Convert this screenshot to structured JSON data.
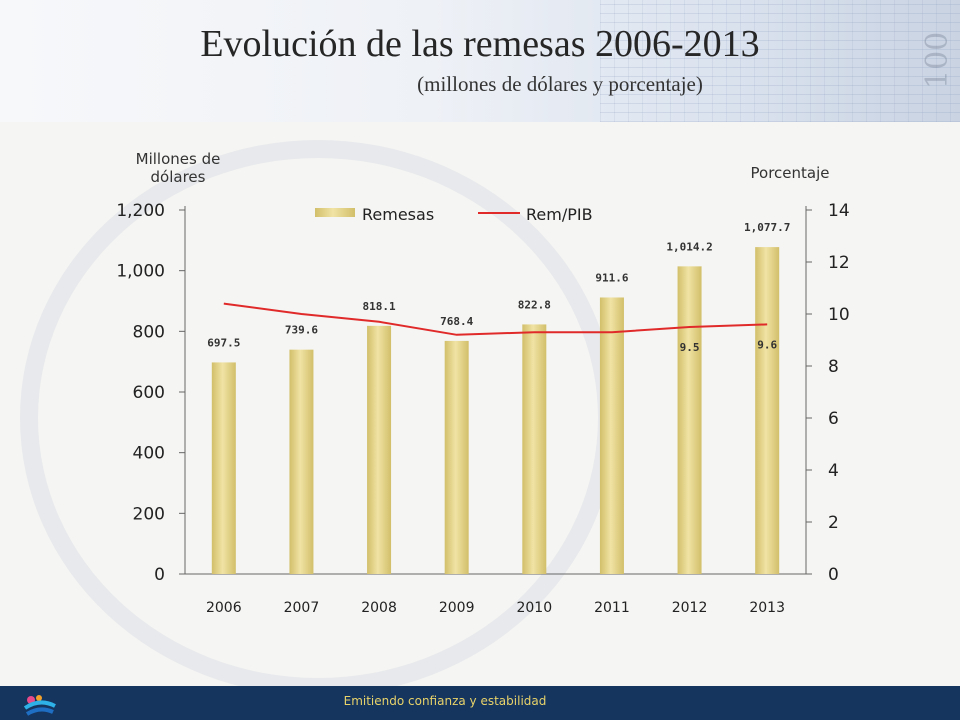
{
  "header": {
    "title": "Evolución de las remesas 2006-2013",
    "subtitle": "(millones de dólares y porcentaje)",
    "deco_number": "100"
  },
  "footer": {
    "tagline": "Emitiendo confianza y estabilidad"
  },
  "colors": {
    "bar": "#d2bf6a",
    "bar_highlight": "#f0e3a4",
    "line": "#e02a2a",
    "footer_bg": "#15345e"
  },
  "chart_data": {
    "type": "bar",
    "title": "Evolución de las remesas 2006-2013",
    "subtitle": "(millones de dólares y porcentaje)",
    "categories": [
      "2006",
      "2007",
      "2008",
      "2009",
      "2010",
      "2011",
      "2012",
      "2013"
    ],
    "ylabel": "Millones de dólares",
    "y2label": "Porcentaje",
    "ylim": [
      0,
      1200
    ],
    "y2lim": [
      0,
      14
    ],
    "yticks": [
      "0",
      "200",
      "400",
      "600",
      "800",
      "1,000",
      "1,200"
    ],
    "y2ticks": [
      "0",
      "2",
      "4",
      "6",
      "8",
      "10",
      "12",
      "14"
    ],
    "legend_position": "top",
    "series": [
      {
        "name": "Remesas",
        "type": "bar",
        "axis": "left",
        "values": [
          697.5,
          739.6,
          818.1,
          768.4,
          822.8,
          911.6,
          1014.2,
          1077.7
        ],
        "labels": [
          "697.5",
          "739.6",
          "818.1",
          "768.4",
          "822.8",
          "911.6",
          "1,014.2",
          "1,077.7"
        ]
      },
      {
        "name": "Rem/PIB",
        "type": "line",
        "axis": "right",
        "values": [
          10.4,
          10.0,
          9.7,
          9.2,
          9.3,
          9.3,
          9.5,
          9.6
        ],
        "labels": [
          "",
          "",
          "",
          "",
          "",
          "",
          "9.5",
          "9.6"
        ]
      }
    ]
  }
}
